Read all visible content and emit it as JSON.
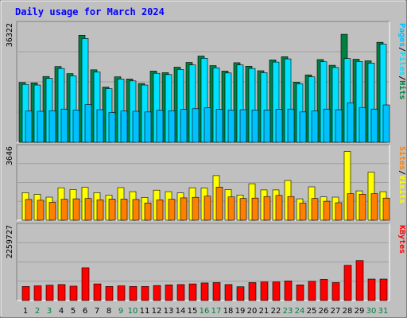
{
  "title": "Daily usage for March 2024",
  "colors": {
    "background": "#c0c0c0",
    "frame_light": "#ffffff",
    "frame_dark": "#808080",
    "title": "#0000ff",
    "hits": "#008040",
    "files": "#00e0ff",
    "pages": "#00c0ff",
    "visits": "#ffff00",
    "sites": "#ff8000",
    "kbytes": "#ff0000",
    "weekday_label": "#000000",
    "weekend_label": "#008040"
  },
  "chart_data": [
    {
      "type": "bar",
      "panel": "hits-files-pages",
      "y_max_label": "36322",
      "ymax": 36322,
      "legend": [
        "Pages",
        "/",
        "Files",
        "/",
        "Hits"
      ],
      "series": [
        {
          "name": "Hits",
          "values": [
            18700,
            18600,
            20600,
            23700,
            21500,
            33500,
            22700,
            17300,
            20500,
            19800,
            18400,
            22300,
            21800,
            23500,
            25000,
            27000,
            24000,
            22300,
            24900,
            23800,
            22400,
            25800,
            26800,
            18800,
            21100,
            25900,
            24100,
            33800,
            26000,
            25500,
            31300
          ]
        },
        {
          "name": "Files",
          "values": [
            18100,
            17900,
            20000,
            23100,
            20800,
            32500,
            22000,
            16800,
            19800,
            19200,
            17900,
            21600,
            21200,
            22800,
            24200,
            26300,
            23300,
            21700,
            24200,
            23100,
            21800,
            25100,
            26100,
            18300,
            20500,
            25200,
            23400,
            26200,
            25300,
            24800,
            30700
          ]
        },
        {
          "name": "Pages",
          "values": [
            9800,
            9700,
            9900,
            10400,
            10100,
            11800,
            10200,
            9300,
            9800,
            9700,
            9500,
            10000,
            9900,
            10300,
            10500,
            10800,
            10300,
            10100,
            10200,
            10100,
            10100,
            10300,
            10400,
            9500,
            9800,
            10400,
            10200,
            12400,
            10900,
            10400,
            11700
          ]
        }
      ]
    },
    {
      "type": "bar",
      "panel": "visits-sites",
      "y_max_label": "3646",
      "ymax": 3646,
      "legend": [
        "Sites",
        "/",
        "Visits"
      ],
      "series": [
        {
          "name": "Visits",
          "values": [
            1420,
            1330,
            1190,
            1670,
            1580,
            1700,
            1420,
            1290,
            1680,
            1470,
            1170,
            1550,
            1470,
            1410,
            1670,
            1660,
            2300,
            1580,
            1300,
            1880,
            1560,
            1560,
            2050,
            1100,
            1720,
            1200,
            1190,
            3540,
            1510,
            2480,
            1470
          ]
        },
        {
          "name": "Sites",
          "values": [
            1070,
            1030,
            920,
            1080,
            1100,
            1120,
            1050,
            1090,
            1090,
            1070,
            890,
            1050,
            1080,
            1150,
            1180,
            1240,
            1710,
            1200,
            1120,
            1140,
            1220,
            1280,
            1220,
            880,
            1120,
            980,
            900,
            1370,
            1340,
            1370,
            1140
          ]
        }
      ]
    },
    {
      "type": "bar",
      "panel": "kbytes",
      "y_max_label": "2259727",
      "ymax": 2259727,
      "legend": [
        "KBytes"
      ],
      "series": [
        {
          "name": "KBytes",
          "values": [
            440000,
            460000,
            480000,
            500000,
            450000,
            1020000,
            520000,
            440000,
            460000,
            440000,
            440000,
            470000,
            490000,
            500000,
            520000,
            550000,
            560000,
            500000,
            430000,
            560000,
            580000,
            580000,
            610000,
            490000,
            600000,
            660000,
            560000,
            1100000,
            1250000,
            670000,
            670000
          ]
        }
      ]
    }
  ],
  "x_labels": [
    "1",
    "2",
    "3",
    "4",
    "5",
    "6",
    "7",
    "8",
    "9",
    "10",
    "11",
    "12",
    "13",
    "14",
    "15",
    "16",
    "17",
    "18",
    "19",
    "20",
    "21",
    "22",
    "23",
    "24",
    "25",
    "26",
    "27",
    "28",
    "29",
    "30",
    "31"
  ],
  "weekend_days": [
    "2",
    "3",
    "9",
    "10",
    "16",
    "17",
    "23",
    "24",
    "30",
    "31"
  ]
}
